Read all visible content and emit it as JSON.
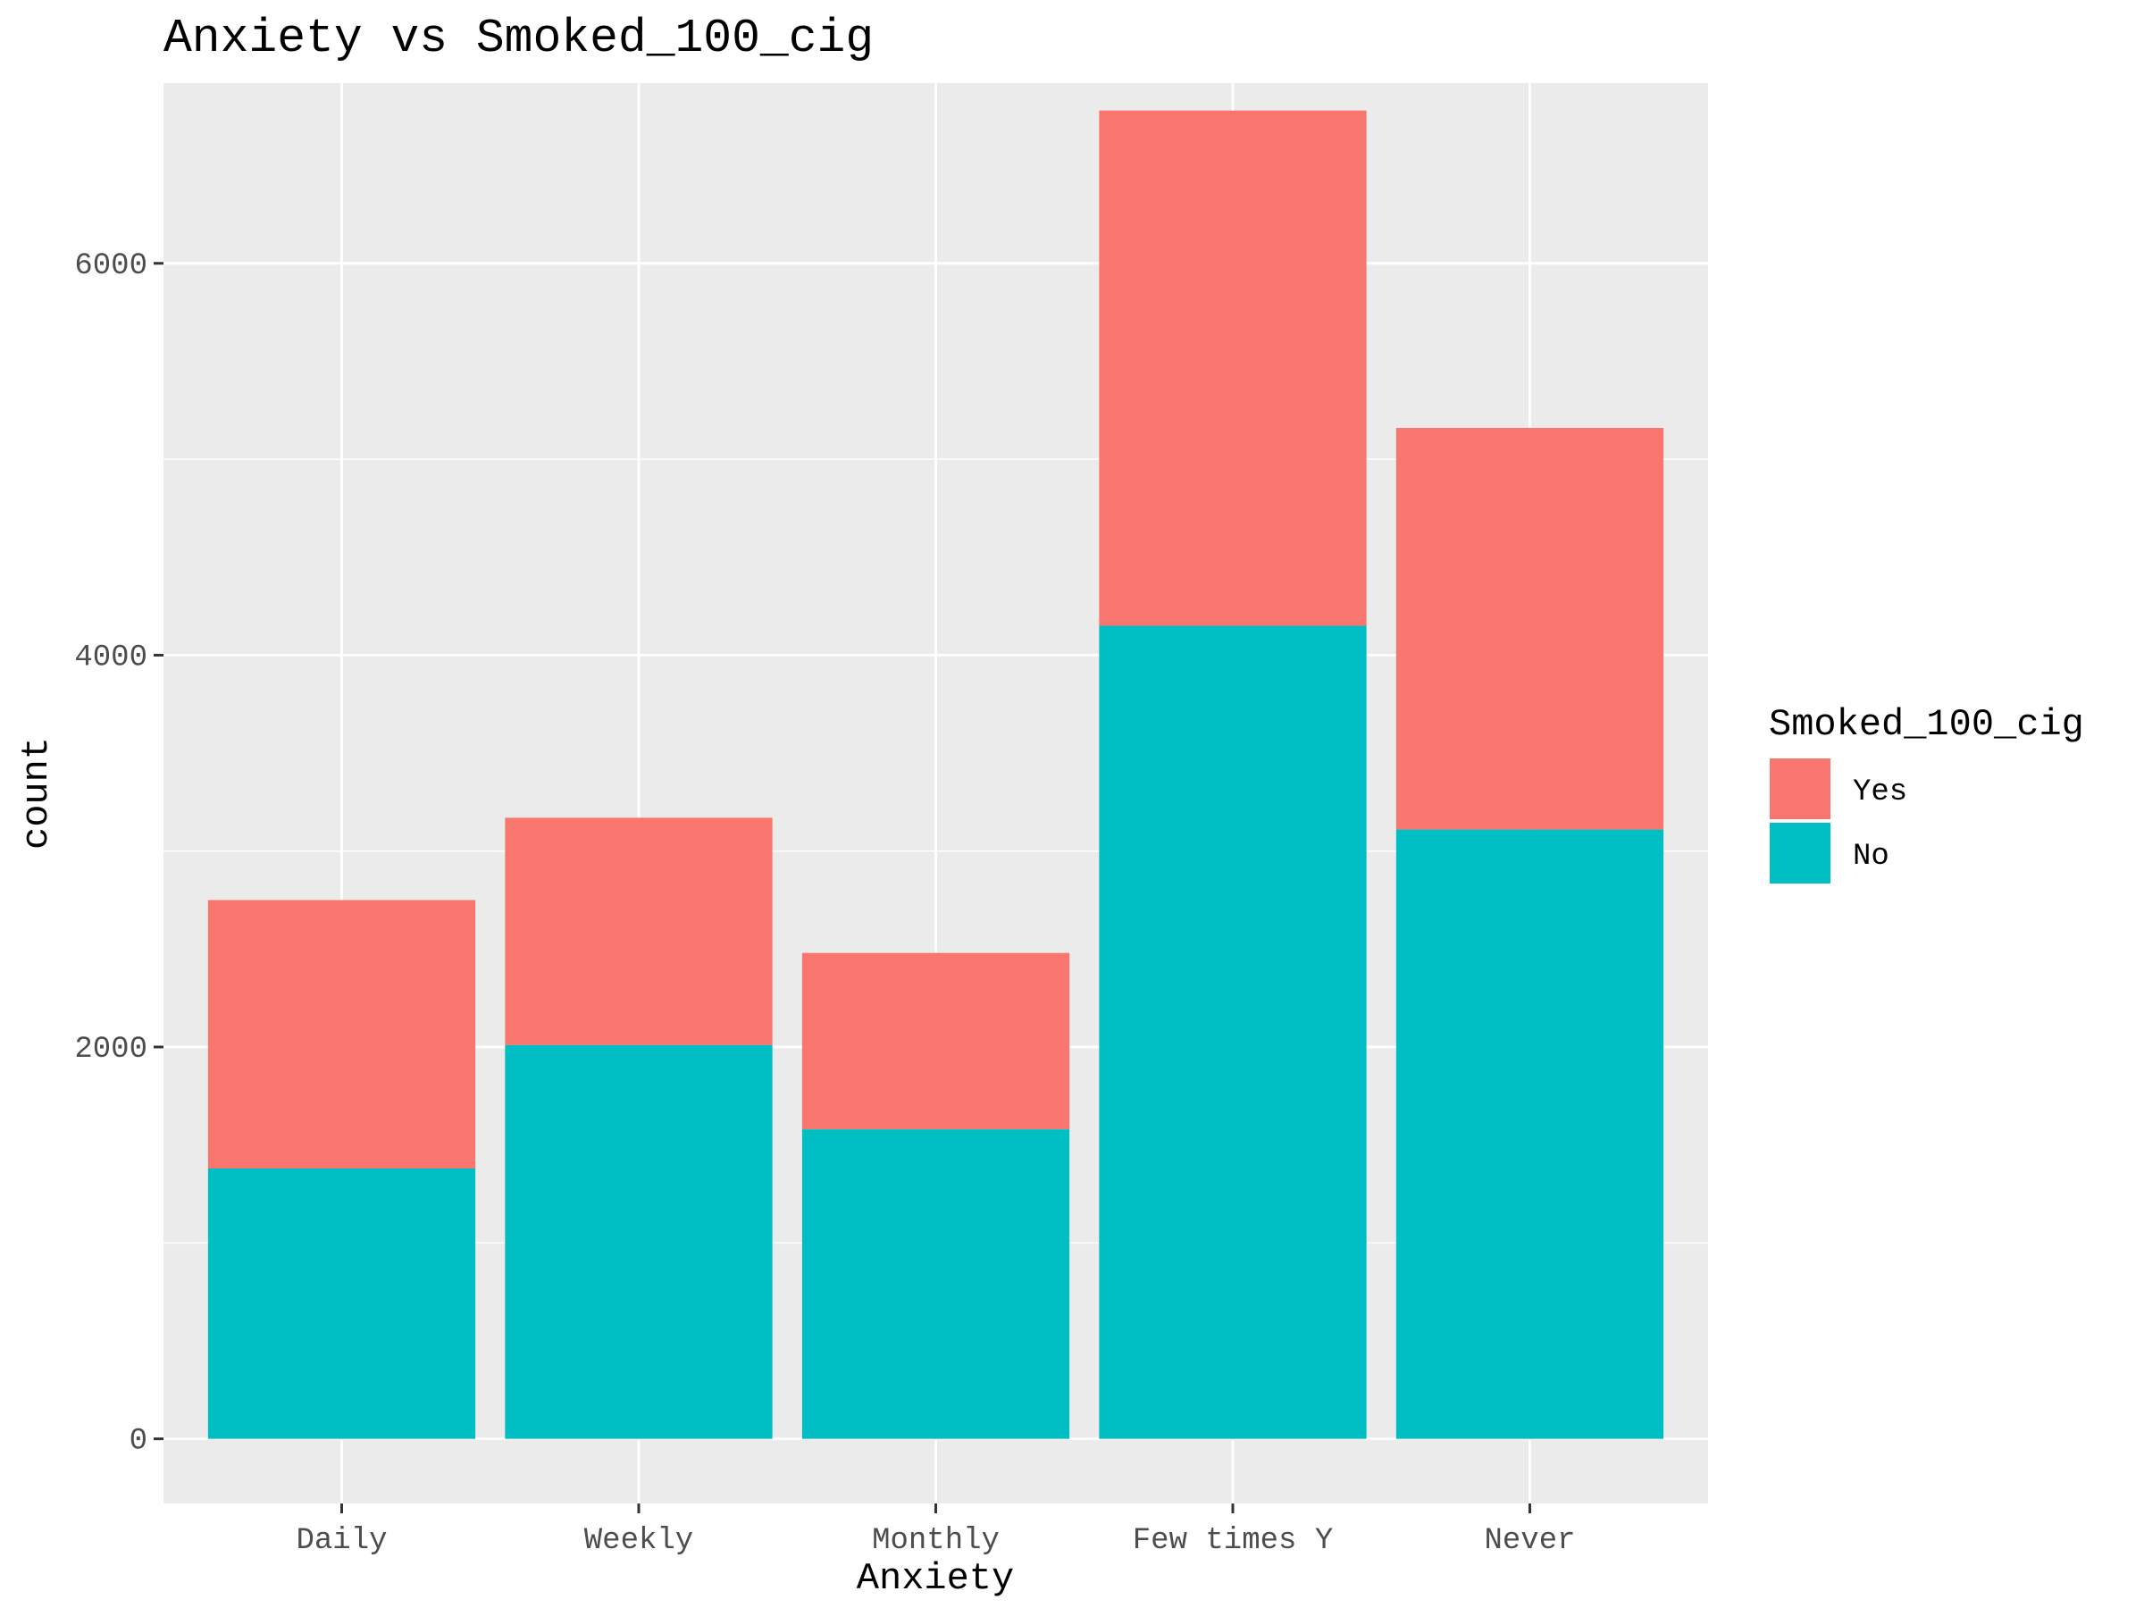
{
  "chart_data": {
    "type": "bar",
    "stacked": true,
    "title": "Anxiety vs Smoked_100_cig",
    "xlabel": "Anxiety",
    "ylabel": "count",
    "categories": [
      "Daily",
      "Weekly",
      "Monthly",
      "Few times Y",
      "Never"
    ],
    "series": [
      {
        "name": "No",
        "values": [
          1380,
          2010,
          1580,
          4150,
          3110
        ],
        "color": "#00BFC4"
      },
      {
        "name": "Yes",
        "values": [
          1370,
          1160,
          900,
          2630,
          2050
        ],
        "color": "#F8766D"
      }
    ],
    "ylim": [
      -330,
      6920
    ],
    "yticks": [
      0,
      2000,
      4000,
      6000
    ],
    "grid": true,
    "legend": {
      "title": "Smoked_100_cig",
      "position": "right",
      "entries": [
        {
          "label": "Yes",
          "color": "#F8766D"
        },
        {
          "label": "No",
          "color": "#00BFC4"
        }
      ]
    },
    "panel_bg": "#EBEBEB",
    "grid_color": "#FFFFFF"
  }
}
